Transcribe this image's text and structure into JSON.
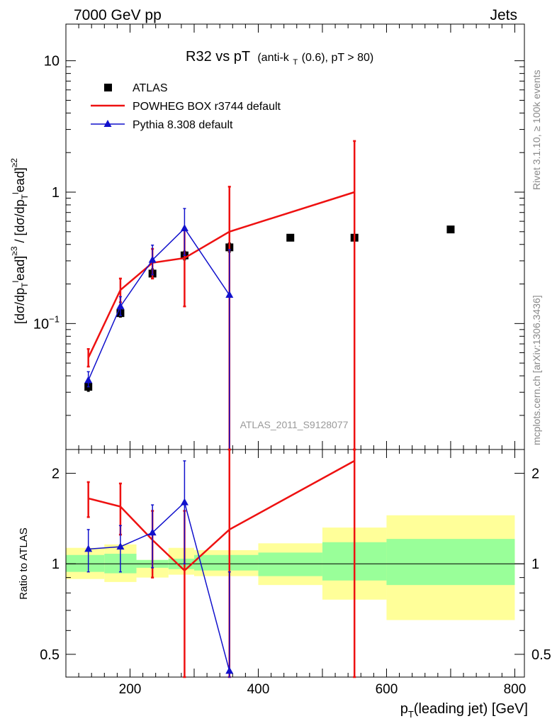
{
  "header": {
    "left": "7000 GeV pp",
    "right": "Jets"
  },
  "side_text": {
    "rivet": "Rivet 3.1.10, ≥ 100k events",
    "source": "mcplots.cern.ch [arXiv:1306.3436]"
  },
  "chart_data": {
    "type": "line",
    "title": {
      "main": "R32 vs pT",
      "sub_prefix": "(anti-k",
      "sub_subscript": "T",
      "sub_suffix": "(0.6), pT > 80)"
    },
    "watermark": "ATLAS_2011_S9128077",
    "x_axis": {
      "label_main": "p",
      "label_sub": "T",
      "label_rest": "(leading jet) [GeV]",
      "range": [
        100,
        815
      ],
      "ticks": [
        200,
        400,
        600,
        800
      ],
      "tick_labels": [
        "200",
        "400",
        "600",
        "800"
      ]
    },
    "y_axis_main": {
      "scale": "log",
      "range": [
        0.011,
        19
      ],
      "label": "[dσ/dp_T^lead]^{≥3} / [dσ/dp_T^lead]^{≥2}",
      "tick_labels": [
        {
          "value": 0.1,
          "base": "10",
          "exp": "−1"
        },
        {
          "value": 1,
          "base": "1",
          "exp": ""
        },
        {
          "value": 10,
          "base": "10",
          "exp": ""
        }
      ]
    },
    "y_axis_ratio": {
      "scale": "log",
      "range": [
        0.42,
        2.4
      ],
      "label": "Ratio to ATLAS",
      "tick_labels": [
        {
          "value": 0.5,
          "label": "0.5"
        },
        {
          "value": 1,
          "label": "1"
        },
        {
          "value": 2,
          "label": "2"
        }
      ]
    },
    "legend_position": "top-left",
    "series": [
      {
        "name": "ATLAS",
        "style": "points",
        "marker": "square",
        "color": "#000000",
        "points": [
          {
            "x": 135,
            "y": 0.033,
            "err_lo": 0.0025,
            "err_hi": 0.0025
          },
          {
            "x": 185,
            "y": 0.12,
            "err_lo": 0.008,
            "err_hi": 0.008
          },
          {
            "x": 235,
            "y": 0.24,
            "err_lo": 0.02,
            "err_hi": 0.02
          },
          {
            "x": 285,
            "y": 0.33,
            "err_lo": 0.025,
            "err_hi": 0.025
          },
          {
            "x": 355,
            "y": 0.38,
            "err_lo": 0.03,
            "err_hi": 0.03
          },
          {
            "x": 450,
            "y": 0.45,
            "err_lo": 0,
            "err_hi": 0
          },
          {
            "x": 550,
            "y": 0.45,
            "err_lo": 0,
            "err_hi": 0
          },
          {
            "x": 700,
            "y": 0.52,
            "err_lo": 0,
            "err_hi": 0
          }
        ]
      },
      {
        "name": "POWHEG BOX r3744 default",
        "style": "line",
        "color": "#ee1111",
        "points": [
          {
            "x": 135,
            "y": 0.055,
            "err_lo": 0.008,
            "err_hi": 0.009
          },
          {
            "x": 185,
            "y": 0.18,
            "err_lo": 0.035,
            "err_hi": 0.04
          },
          {
            "x": 235,
            "y": 0.29,
            "err_lo": 0.07,
            "err_hi": 0.08
          },
          {
            "x": 285,
            "y": 0.315,
            "err_lo": 0.18,
            "err_hi": 0.2
          },
          {
            "x": 355,
            "y": 0.5,
            "err_lo": 0.5,
            "err_hi": 0.6
          },
          {
            "x": 550,
            "y": 1.0,
            "err_lo": 1.0,
            "err_hi": 1.45
          }
        ],
        "ratio": [
          {
            "x": 135,
            "y": 1.65,
            "err_lo": 0.22,
            "err_hi": 0.22
          },
          {
            "x": 185,
            "y": 1.55,
            "err_lo": 0.3,
            "err_hi": 0.3
          },
          {
            "x": 235,
            "y": 1.2,
            "err_lo": 0.3,
            "err_hi": 0.3
          },
          {
            "x": 285,
            "y": 0.95,
            "err_lo": 0.95,
            "err_hi": 0.55
          },
          {
            "x": 355,
            "y": 1.3,
            "err_lo": 1.3,
            "err_hi": 1.3
          },
          {
            "x": 550,
            "y": 2.2,
            "err_lo": 2.2,
            "err_hi": 1.3
          }
        ]
      },
      {
        "name": "Pythia 8.308 default",
        "style": "line",
        "marker": "triangle",
        "color": "#1111cc",
        "points": [
          {
            "x": 135,
            "y": 0.037,
            "err_lo": 0.004,
            "err_hi": 0.006
          },
          {
            "x": 185,
            "y": 0.135,
            "err_lo": 0.02,
            "err_hi": 0.025
          },
          {
            "x": 235,
            "y": 0.305,
            "err_lo": 0.07,
            "err_hi": 0.09
          },
          {
            "x": 285,
            "y": 0.53,
            "err_lo": 0.2,
            "err_hi": 0.22
          },
          {
            "x": 355,
            "y": 0.165,
            "err_lo": 0.165,
            "err_hi": 0.2
          }
        ],
        "ratio": [
          {
            "x": 135,
            "y": 1.12,
            "err_lo": 0.18,
            "err_hi": 0.18
          },
          {
            "x": 185,
            "y": 1.14,
            "err_lo": 0.2,
            "err_hi": 0.2
          },
          {
            "x": 235,
            "y": 1.27,
            "err_lo": 0.3,
            "err_hi": 0.3
          },
          {
            "x": 285,
            "y": 1.6,
            "err_lo": 0.6,
            "err_hi": 0.6
          },
          {
            "x": 355,
            "y": 0.44,
            "err_lo": 0.44,
            "err_hi": 0.5
          }
        ]
      }
    ],
    "uncertainty_bands": [
      {
        "x_lo": 100,
        "x_hi": 160,
        "inner": [
          0.94,
          1.07
        ],
        "outer": [
          0.89,
          1.13
        ]
      },
      {
        "x_lo": 160,
        "x_hi": 210,
        "inner": [
          0.93,
          1.08
        ],
        "outer": [
          0.87,
          1.16
        ]
      },
      {
        "x_lo": 210,
        "x_hi": 260,
        "inner": [
          0.97,
          1.03
        ],
        "outer": [
          0.9,
          1.03
        ]
      },
      {
        "x_lo": 260,
        "x_hi": 300,
        "inner": [
          0.96,
          1.04
        ],
        "outer": [
          0.92,
          1.13
        ]
      },
      {
        "x_lo": 300,
        "x_hi": 400,
        "inner": [
          0.95,
          1.07
        ],
        "outer": [
          0.91,
          1.11
        ]
      },
      {
        "x_lo": 400,
        "x_hi": 500,
        "inner": [
          0.91,
          1.09
        ],
        "outer": [
          0.85,
          1.17
        ]
      },
      {
        "x_lo": 500,
        "x_hi": 600,
        "inner": [
          0.88,
          1.18
        ],
        "outer": [
          0.76,
          1.32
        ]
      },
      {
        "x_lo": 600,
        "x_hi": 800,
        "inner": [
          0.85,
          1.21
        ],
        "outer": [
          0.65,
          1.45
        ]
      }
    ],
    "colors": {
      "band_inner": "#99ff99",
      "band_outer": "#ffff99"
    }
  }
}
